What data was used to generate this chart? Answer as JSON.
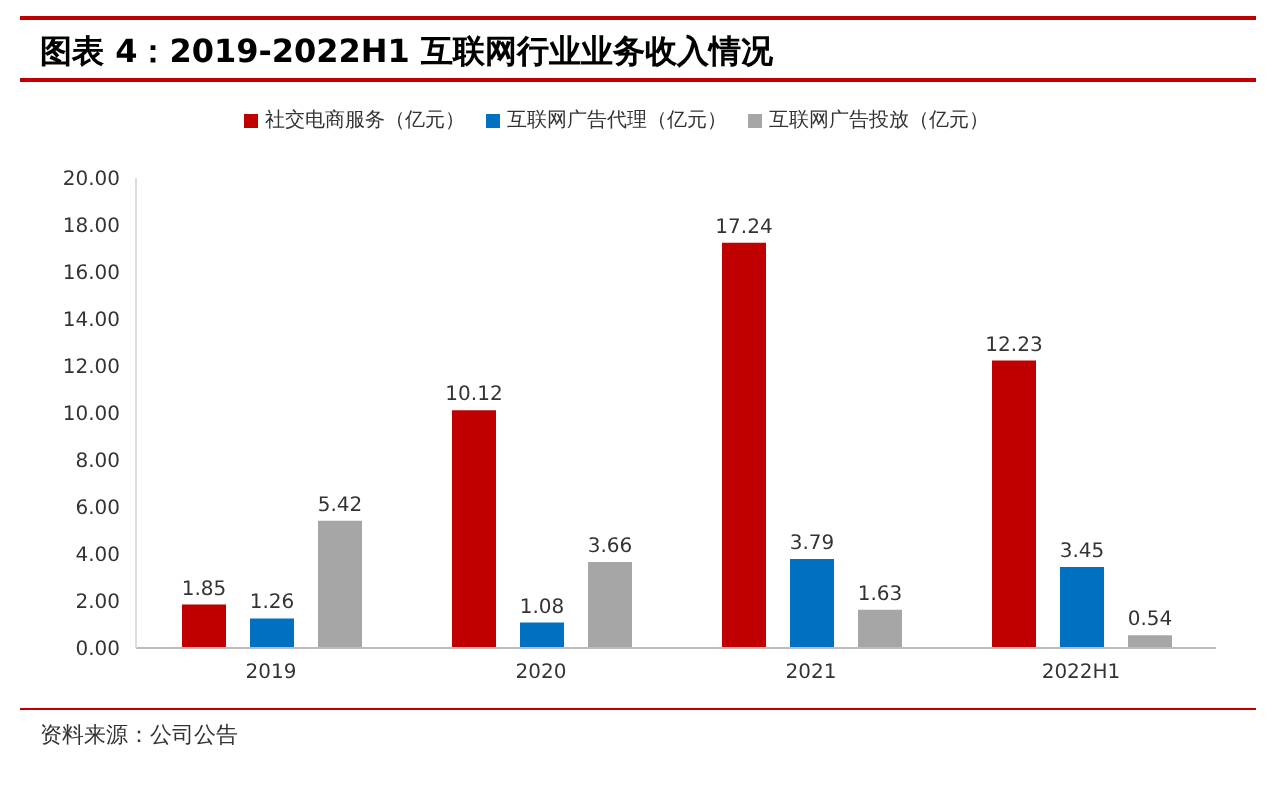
{
  "chart_data": {
    "type": "bar",
    "title": "图表 4：2019-2022H1 互联网行业业务收入情况",
    "categories": [
      "2019",
      "2020",
      "2021",
      "2022H1"
    ],
    "series": [
      {
        "name": "社交电商服务（亿元）",
        "color": "#c00000",
        "values": [
          1.85,
          10.12,
          17.24,
          12.23
        ]
      },
      {
        "name": "互联网广告代理（亿元）",
        "color": "#0070c0",
        "values": [
          1.26,
          1.08,
          3.79,
          3.45
        ]
      },
      {
        "name": "互联网广告投放（亿元）",
        "color": "#a6a6a6",
        "values": [
          5.42,
          3.66,
          1.63,
          0.54
        ]
      }
    ],
    "ylim": [
      0,
      20
    ],
    "yticks": [
      {
        "value": 0,
        "label": "0.00"
      },
      {
        "value": 2,
        "label": "2.00"
      },
      {
        "value": 4,
        "label": "4.00"
      },
      {
        "value": 6,
        "label": "6.00"
      },
      {
        "value": 8,
        "label": "8.00"
      },
      {
        "value": 10,
        "label": "10.00"
      },
      {
        "value": 12,
        "label": "12.00"
      },
      {
        "value": 14,
        "label": "14.00"
      },
      {
        "value": 16,
        "label": "16.00"
      },
      {
        "value": 18,
        "label": "18.00"
      },
      {
        "value": 20,
        "label": "20.00"
      }
    ],
    "data_labels": true,
    "legend": "top",
    "grid": false,
    "annotations": [
      "资料来源：公司公告"
    ]
  }
}
